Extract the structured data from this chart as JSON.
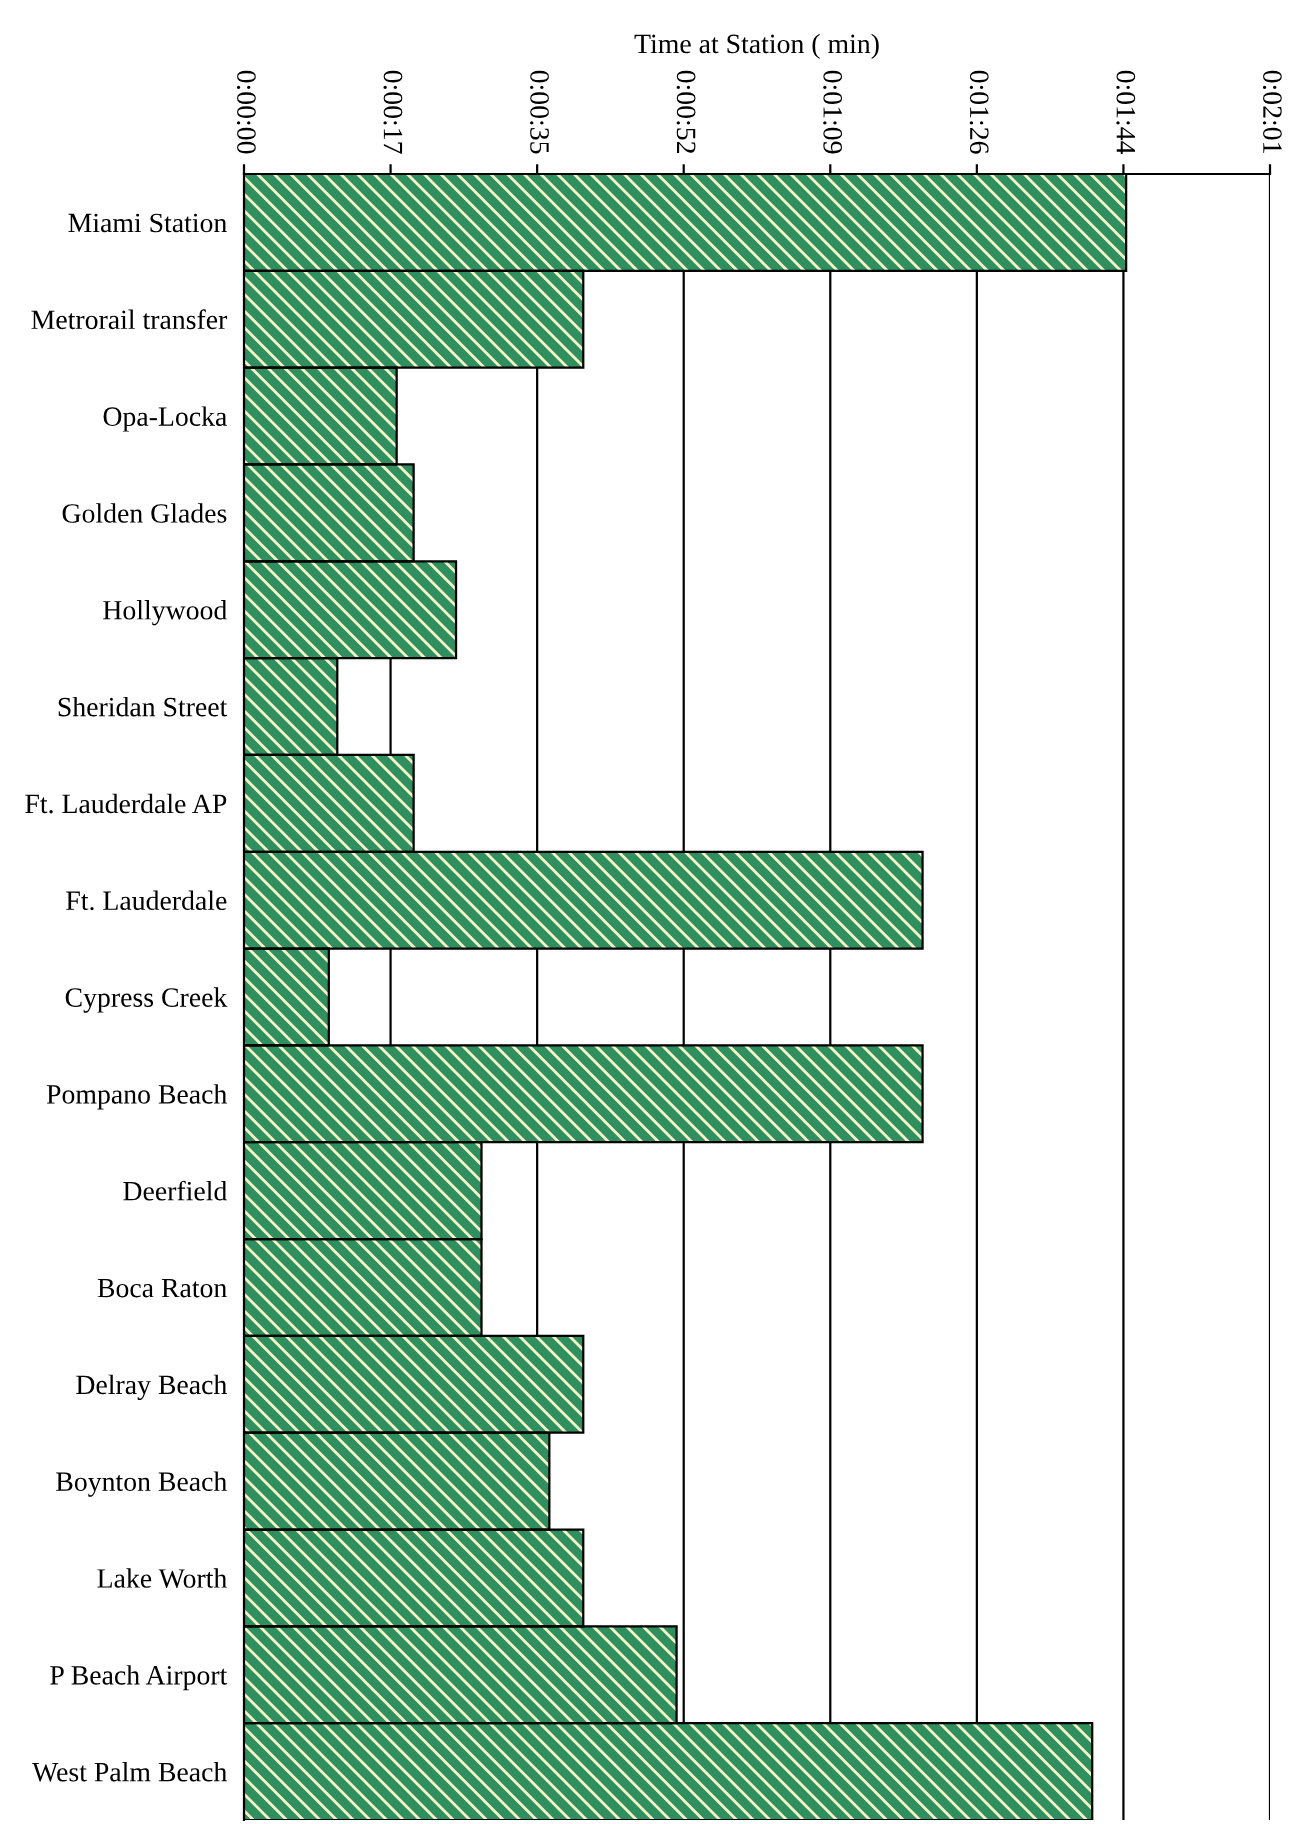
{
  "chart_data": {
    "type": "bar",
    "orientation": "horizontal",
    "xlabel": "Time at Station ( min)",
    "categories": [
      "Miami Station",
      "Metrorail transfer",
      "Opa-Locka",
      "Golden Glades",
      "Hollywood",
      "Sheridan Street",
      "Ft. Lauderdale AP",
      "Ft. Lauderdale",
      "Cypress Creek",
      "Pompano Beach",
      "Deerfield",
      "Boca Raton",
      "Delray Beach",
      "Boynton Beach",
      "Lake Worth",
      "P Beach Airport",
      "West Palm Beach"
    ],
    "values": [
      104,
      40,
      18,
      20,
      25,
      11,
      20,
      80,
      10,
      80,
      28,
      28,
      40,
      36,
      40,
      51,
      100
    ],
    "color": "#2f8f5f",
    "xlim": [
      0,
      120.96
    ],
    "xticks": [
      {
        "value": 0,
        "label": "0:00:00"
      },
      {
        "value": 17.28,
        "label": "0:00:17"
      },
      {
        "value": 34.56,
        "label": "0:00:35"
      },
      {
        "value": 51.84,
        "label": "0:00:52"
      },
      {
        "value": 69.12,
        "label": "0:01:09"
      },
      {
        "value": 86.4,
        "label": "0:01:26"
      },
      {
        "value": 103.68,
        "label": "0:01:44"
      },
      {
        "value": 120.96,
        "label": "0:02:01"
      }
    ],
    "grid": "x"
  }
}
